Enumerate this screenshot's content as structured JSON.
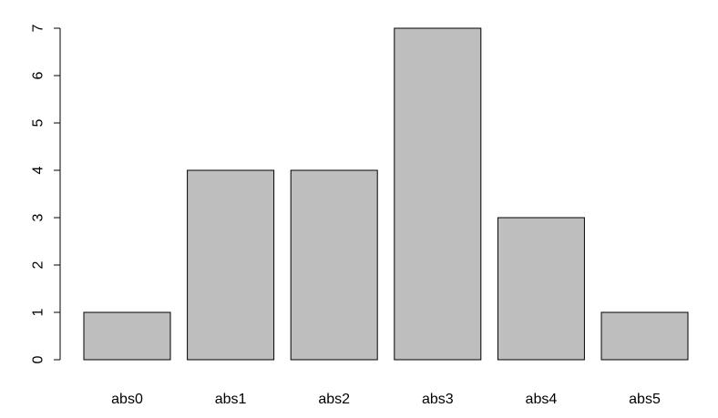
{
  "chart_data": {
    "type": "bar",
    "title": "",
    "xlabel": "",
    "ylabel": "",
    "categories": [
      "abs0",
      "abs1",
      "abs2",
      "abs3",
      "abs4",
      "abs5"
    ],
    "values": [
      1,
      4,
      4,
      7,
      3,
      1
    ],
    "ylim": [
      0,
      7
    ],
    "yticks": [
      0,
      1,
      2,
      3,
      4,
      5,
      6,
      7
    ],
    "ytick_labels": [
      "0",
      "1",
      "2",
      "3",
      "4",
      "5",
      "6",
      "7"
    ],
    "grid": false,
    "legend": "none",
    "colors": {
      "bar_fill": "#bebebe",
      "bar_stroke": "#000000",
      "axis": "#000000",
      "background": "#ffffff"
    }
  }
}
